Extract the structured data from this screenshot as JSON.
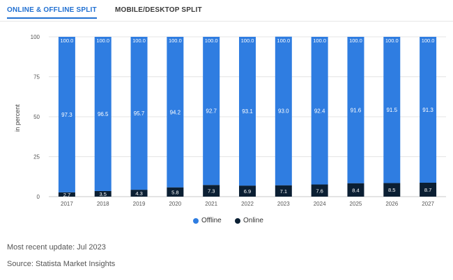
{
  "tabs": [
    {
      "label": "ONLINE & OFFLINE SPLIT",
      "active": true
    },
    {
      "label": "MOBILE/DESKTOP SPLIT",
      "active": false
    }
  ],
  "chart_data": {
    "type": "bar",
    "stacked": true,
    "ylabel": "in percent",
    "ylim": [
      0,
      100
    ],
    "yticks": [
      0,
      25,
      50,
      75,
      100
    ],
    "grid": true,
    "legend_position": "bottom-center",
    "categories": [
      "2017",
      "2018",
      "2019",
      "2020",
      "2021",
      "2022",
      "2023",
      "2024",
      "2025",
      "2026",
      "2027"
    ],
    "series": [
      {
        "name": "Online",
        "color": "#0b1f33",
        "values": [
          2.7,
          3.5,
          4.3,
          5.8,
          7.3,
          6.9,
          7.1,
          7.6,
          8.4,
          8.5,
          8.7
        ]
      },
      {
        "name": "Offline",
        "color": "#2f7de1",
        "values": [
          97.3,
          96.5,
          95.7,
          94.2,
          92.7,
          93.1,
          93.0,
          92.4,
          91.6,
          91.5,
          91.3
        ]
      }
    ],
    "top_labels": [
      "100.0",
      "100.0",
      "100.0",
      "100.0",
      "100.0",
      "100.0",
      "100.0",
      "100.0",
      "100.0",
      "100.0",
      "100.0"
    ],
    "online_labels": [
      "2.7",
      "3.5",
      "4.3",
      "5.8",
      "7.3",
      "6.9",
      "7.1",
      "7.6",
      "8.4",
      "8.5",
      "8.7"
    ],
    "offline_labels": [
      "97.3",
      "96.5",
      "95.7",
      "94.2",
      "92.7",
      "93.1",
      "93.0",
      "92.4",
      "91.6",
      "91.5",
      "91.3"
    ]
  },
  "legend": {
    "offline": "Offline",
    "online": "Online"
  },
  "footer": {
    "update": "Most recent update: Jul 2023",
    "source": "Source: Statista Market Insights"
  }
}
